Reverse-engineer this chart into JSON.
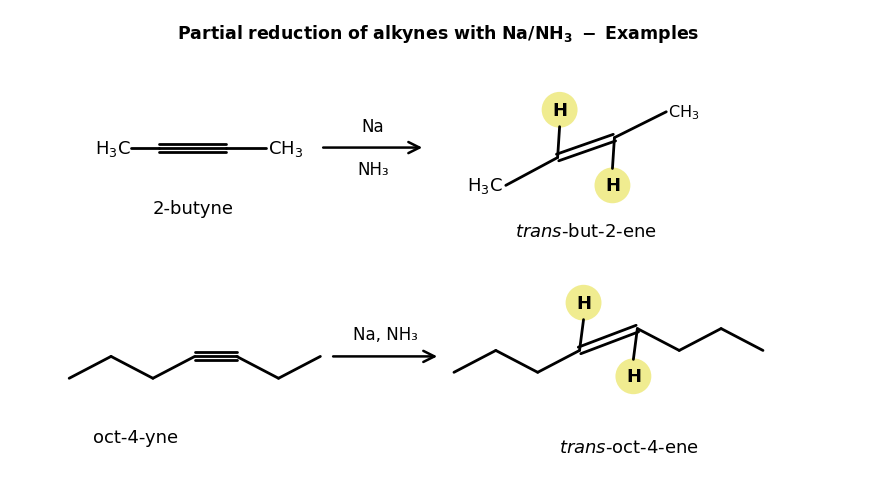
{
  "title": "Partial reduction of alkynes with Na/NH₃ - Examples",
  "bg_color": "#ffffff",
  "highlight_color": "#f0ec90",
  "line_color": "#000000",
  "reaction1": {
    "reactant_label": "2-butyne",
    "product_label": "trans-but-2-ene",
    "reagent_line1": "Na",
    "reagent_line2": "NH₃"
  },
  "reaction2": {
    "reactant_label": "oct-4-yne",
    "product_label": "trans-oct-4-ene",
    "reagent_line1": "Na, NH₃"
  }
}
